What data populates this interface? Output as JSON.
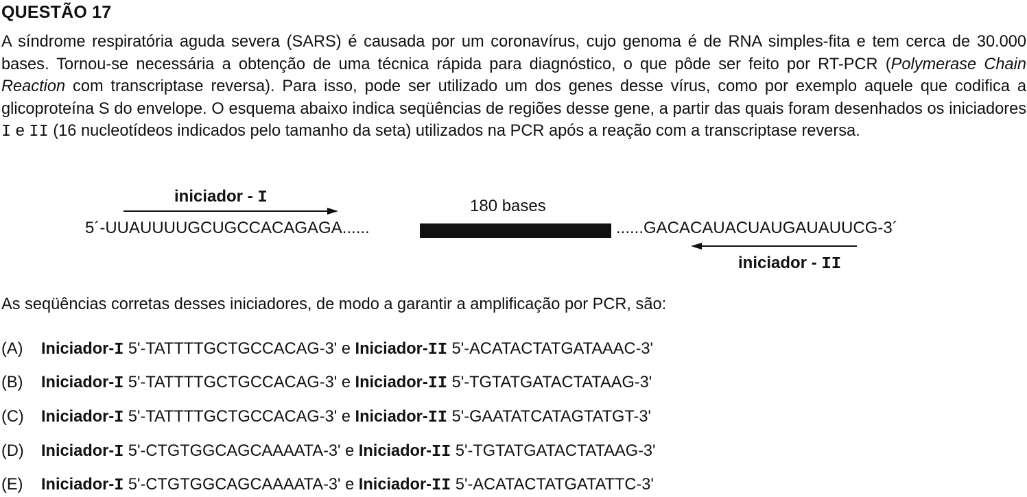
{
  "title": "QUESTÃO 17",
  "paragraph": {
    "part1": "A síndrome respiratória aguda severa (SARS) é causada por um coronavírus, cujo genoma é de RNA simples-fita e tem cerca de 30.000 bases. Tornou-se necessária a obtenção de uma técnica rápida para diagnóstico, o que pôde ser feito por RT-PCR (",
    "italic": "Polymerase Chain Reaction",
    "part2": " com transcriptase reversa). Para isso, pode ser utilizado um dos genes desse vírus, como por exemplo aquele que codifica a glicoproteína S do envelope. O esquema abaixo indica seqüências de regiões desse gene, a partir das quais foram desenhados os iniciadores ",
    "mono1": "I",
    "part3": " e ",
    "mono2": "II",
    "part4": " (16 nucleotídeos indicados pelo tamanho da seta) utilizados na PCR após a reação com a transcriptase reversa."
  },
  "diagram": {
    "primer1_label": "iniciador - ",
    "primer1_mono": "I",
    "primer2_label": "iniciador - ",
    "primer2_mono": "II",
    "bases_label": "180  bases",
    "left_sequence": "5´-UUAUUUUGCUGCCACAGAGA......",
    "right_sequence": "......GACACAUACUAUGAUAUUCG-3´"
  },
  "question": "As seqüências corretas desses iniciadores, de modo a garantir a amplificação por PCR, são:",
  "options": [
    {
      "letter": "(A)",
      "label1": "Iniciador-",
      "mono1": "I",
      "seq1": " 5'-TATTTTGCTGCCACAG-3'  e  ",
      "label2": "Iniciador-",
      "mono2": "II",
      "seq2": " 5'-ACATACTATGATAAAC-3'"
    },
    {
      "letter": "(B)",
      "label1": "Iniciador-",
      "mono1": "I",
      "seq1": " 5'-TATTTTGCTGCCACAG-3'  e  ",
      "label2": "Iniciador-",
      "mono2": "II",
      "seq2": " 5'-TGTATGATACTATAAG-3'"
    },
    {
      "letter": "(C)",
      "label1": "Iniciador-",
      "mono1": "I",
      "seq1": " 5'-TATTTTGCTGCCACAG-3'  e  ",
      "label2": "Iniciador-",
      "mono2": "II",
      "seq2": " 5'-GAATATCATAGTATGT-3'"
    },
    {
      "letter": "(D)",
      "label1": "Iniciador-",
      "mono1": "I",
      "seq1": " 5'-CTGTGGCAGCAAAATA-3'  e  ",
      "label2": "Iniciador-",
      "mono2": "II",
      "seq2": " 5'-TGTATGATACTATAAG-3'"
    },
    {
      "letter": "(E)",
      "label1": "Iniciador-",
      "mono1": "I",
      "seq1": " 5'-CTGTGGCAGCAAAATA-3'  e  ",
      "label2": "Iniciador-",
      "mono2": "II",
      "seq2": " 5'-ACATACTATGATATTC-3'"
    }
  ]
}
